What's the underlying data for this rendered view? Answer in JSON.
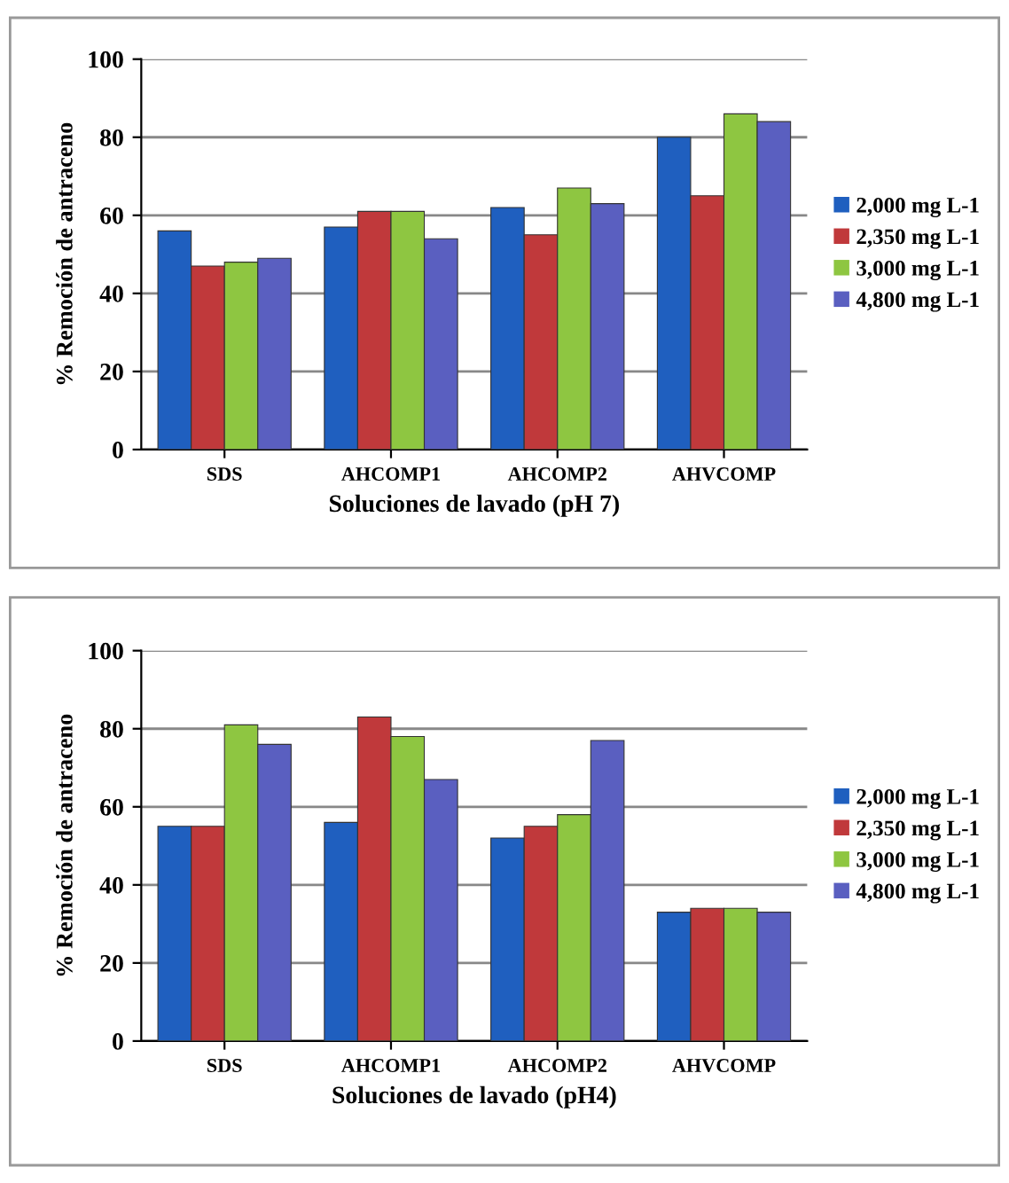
{
  "chart_data": [
    {
      "type": "bar",
      "xlabel": "Soluciones de lavado (pH 7)",
      "ylabel": "% Remoción de antraceno",
      "categories": [
        "SDS",
        "AHCOMP1",
        "AHCOMP2",
        "AHVCOMP"
      ],
      "ylim": [
        0,
        100
      ],
      "yticks": [
        0,
        20,
        40,
        60,
        80,
        100
      ],
      "grid": "y",
      "legend": "right",
      "series": [
        {
          "name": "2,000 mg L-1",
          "color": "#1f5fbf",
          "values": [
            56,
            57,
            62,
            80
          ]
        },
        {
          "name": "2,350 mg L-1",
          "color": "#c0393b",
          "values": [
            47,
            61,
            55,
            65
          ]
        },
        {
          "name": "3,000 mg L-1",
          "color": "#8ec641",
          "values": [
            48,
            61,
            67,
            86
          ]
        },
        {
          "name": "4,800 mg L-1",
          "color": "#5a5fc0",
          "values": [
            49,
            54,
            63,
            84
          ]
        }
      ]
    },
    {
      "type": "bar",
      "xlabel": "Soluciones de lavado (pH4)",
      "ylabel": "% Remoción de antraceno",
      "categories": [
        "SDS",
        "AHCOMP1",
        "AHCOMP2",
        "AHVCOMP"
      ],
      "ylim": [
        0,
        100
      ],
      "yticks": [
        0,
        20,
        40,
        60,
        80,
        100
      ],
      "grid": "y",
      "legend": "right",
      "series": [
        {
          "name": "2,000 mg L-1",
          "color": "#1f5fbf",
          "values": [
            55,
            56,
            52,
            33
          ]
        },
        {
          "name": "2,350 mg L-1",
          "color": "#c0393b",
          "values": [
            55,
            83,
            55,
            34
          ]
        },
        {
          "name": "3,000 mg L-1",
          "color": "#8ec641",
          "values": [
            81,
            78,
            58,
            34
          ]
        },
        {
          "name": "4,800 mg L-1",
          "color": "#5a5fc0",
          "values": [
            76,
            67,
            77,
            33
          ]
        }
      ]
    }
  ]
}
